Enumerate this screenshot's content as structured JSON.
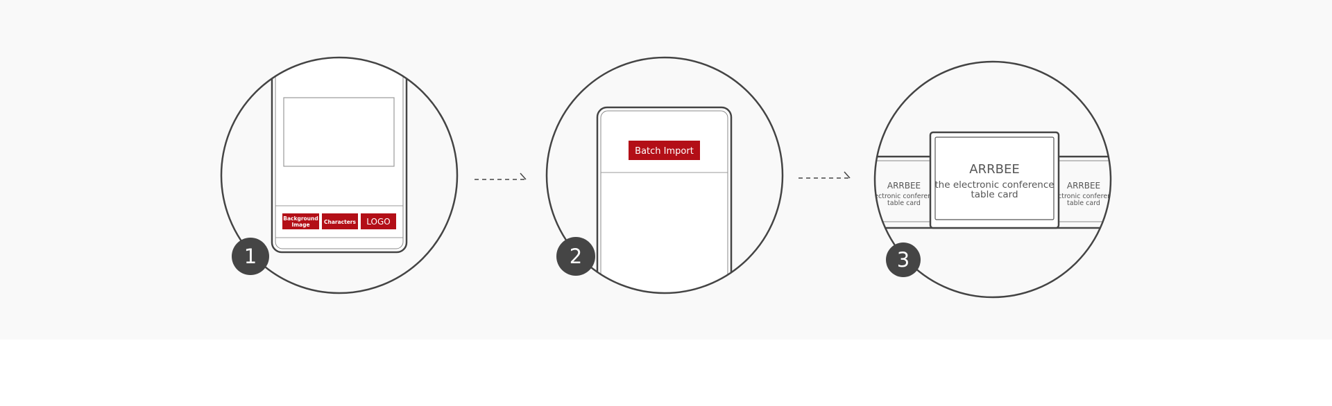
{
  "steps": [
    {
      "number": "1"
    },
    {
      "number": "2"
    },
    {
      "number": "3"
    }
  ],
  "step1": {
    "buttons": {
      "background_image": [
        "Background",
        "Image"
      ],
      "characters": "Characters",
      "logo": "LOGO"
    }
  },
  "step2": {
    "batch_import": "Batch Import"
  },
  "step3": {
    "main_card": {
      "brand": "ARRBEE",
      "line1": "the electronic conference",
      "line2": "table card"
    },
    "side_card": {
      "brand": "ARRBEE",
      "line1": "electronic conference",
      "line2": "table card"
    }
  },
  "colors": {
    "accent_red": "#b30f17",
    "badge": "#454545",
    "line": "#444444",
    "band_bg": "#f9f9f9"
  }
}
